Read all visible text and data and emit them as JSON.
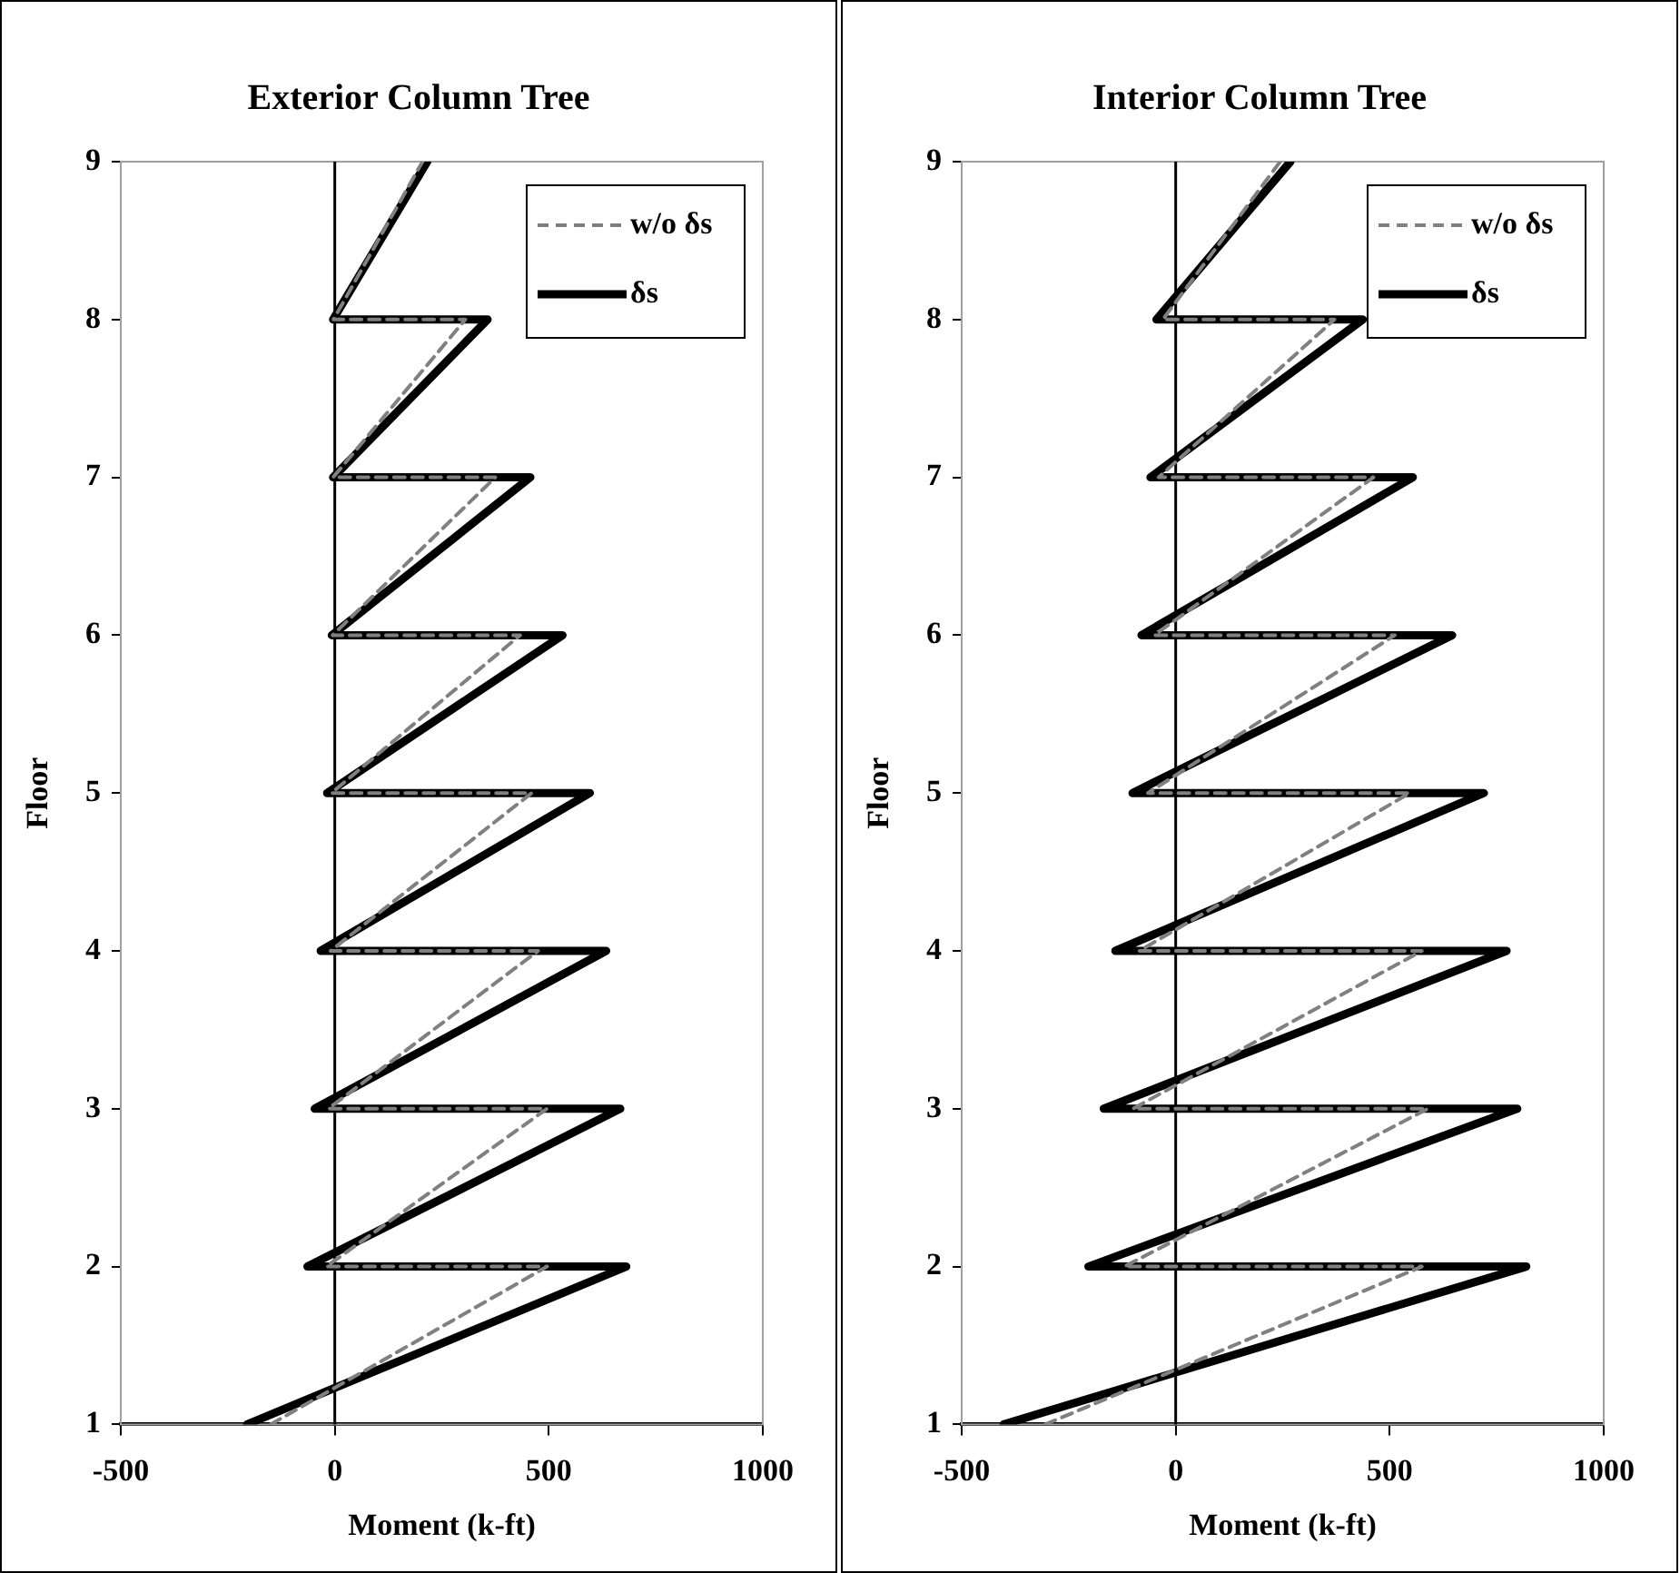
{
  "chart_data": [
    {
      "type": "line",
      "title": "Exterior Column Tree",
      "ref_lines": [
        {
          "axis": "x",
          "value": 0,
          "color": "#000000"
        }
      ],
      "xlabel": "Moment (k-ft)",
      "ylabel": "Floor",
      "xlim": [
        -500,
        1000
      ],
      "xticks": [
        -500,
        0,
        500,
        1000
      ],
      "ylim": [
        1,
        9
      ],
      "yticks": [
        1,
        2,
        3,
        4,
        5,
        6,
        7,
        8,
        9
      ],
      "grid": false,
      "legend": "top right",
      "marker": "none",
      "series": [
        {
          "name": "w/o δs",
          "color": "#808080",
          "line_style": "dashed",
          "x": [
            -150,
            496,
            -20,
            496,
            -15,
            475,
            -10,
            460,
            -8,
            433,
            -5,
            375,
            -4,
            305,
            -3,
            205
          ],
          "values": [
            1,
            2,
            2,
            3,
            3,
            4,
            4,
            5,
            5,
            6,
            6,
            7,
            7,
            8,
            8,
            9
          ]
        },
        {
          "name": "δs",
          "color": "#000000",
          "line_style": "solid",
          "x": [
            -205,
            681,
            -64,
            667,
            -47,
            634,
            -33,
            596,
            -18,
            532,
            -7,
            457,
            -4,
            357,
            -4,
            216
          ],
          "values": [
            1,
            2,
            2,
            3,
            3,
            4,
            4,
            5,
            5,
            6,
            6,
            7,
            7,
            8,
            8,
            9
          ]
        }
      ]
    },
    {
      "type": "line",
      "title": "Interior Column Tree",
      "ref_lines": [
        {
          "axis": "x",
          "value": 0,
          "color": "#000000"
        }
      ],
      "xlabel": "Moment (k-ft)",
      "ylabel": "Floor",
      "xlim": [
        -500,
        1000
      ],
      "xticks": [
        -500,
        0,
        500,
        1000
      ],
      "ylim": [
        1,
        9
      ],
      "yticks": [
        1,
        2,
        3,
        4,
        5,
        6,
        7,
        8,
        9
      ],
      "grid": false,
      "legend": "top right",
      "marker": "none",
      "series": [
        {
          "name": "w/o δs",
          "color": "#808080",
          "line_style": "dashed",
          "x": [
            -305,
            575,
            -120,
            589,
            -100,
            575,
            -85,
            547,
            -65,
            512,
            -50,
            462,
            -40,
            371,
            -30,
            244
          ],
          "values": [
            1,
            2,
            2,
            3,
            3,
            4,
            4,
            5,
            5,
            6,
            6,
            7,
            7,
            8,
            8,
            9
          ]
        },
        {
          "name": "δs",
          "color": "#000000",
          "line_style": "solid",
          "x": [
            -402,
            819,
            -204,
            798,
            -168,
            773,
            -141,
            720,
            -101,
            646,
            -80,
            554,
            -59,
            437,
            -45,
            268
          ],
          "values": [
            1,
            2,
            2,
            3,
            3,
            4,
            4,
            5,
            5,
            6,
            6,
            7,
            7,
            8,
            8,
            9
          ]
        }
      ]
    }
  ]
}
